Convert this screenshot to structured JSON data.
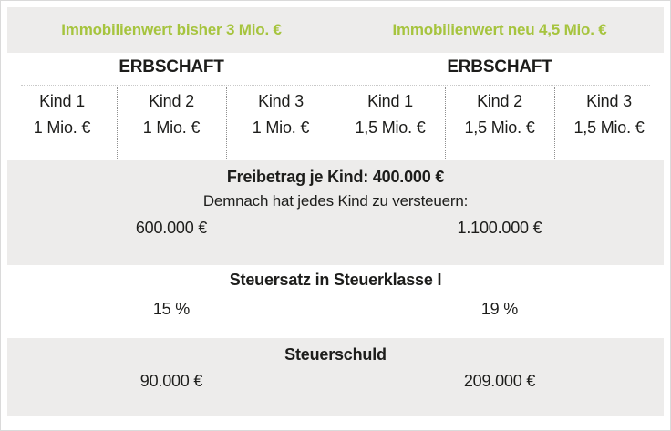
{
  "colors": {
    "accent_green": "#a6c43e",
    "band_gray": "#edeceb",
    "text_black": "#1d1d1b",
    "divider_gray": "#8f8f8f",
    "divider_light": "#c9c9c9",
    "frame_gray": "#dadada"
  },
  "header": {
    "left_title": "Immobilienwert bisher 3 Mio. €",
    "right_title": "Immobilienwert neu 4,5 Mio. €"
  },
  "erbschaft": {
    "left": {
      "title": "ERBSCHAFT",
      "children": [
        {
          "label": "Kind 1",
          "value": "1 Mio. €"
        },
        {
          "label": "Kind 2",
          "value": "1 Mio. €"
        },
        {
          "label": "Kind 3",
          "value": "1 Mio. €"
        }
      ]
    },
    "right": {
      "title": "ERBSCHAFT",
      "children": [
        {
          "label": "Kind 1",
          "value": "1,5 Mio. €"
        },
        {
          "label": "Kind 2",
          "value": "1,5 Mio. €"
        },
        {
          "label": "Kind 3",
          "value": "1,5 Mio. €"
        }
      ]
    }
  },
  "freibetrag": {
    "title": "Freibetrag je Kind: 400.000 €",
    "subtitle": "Demnach hat jedes Kind zu versteuern:",
    "left_value": "600.000 €",
    "right_value": "1.100.000 €"
  },
  "steuersatz": {
    "title": "Steuersatz in Steuerklasse I",
    "left_value": "15 %",
    "right_value": "19 %"
  },
  "steuerschuld": {
    "title": "Steuerschuld",
    "left_value": "90.000 €",
    "right_value": "209.000 €"
  },
  "chart_data": {
    "type": "table",
    "columns": [
      "Immobilienwert bisher 3 Mio. €",
      "Immobilienwert neu 4,5 Mio. €"
    ],
    "kinder": [
      "Kind 1",
      "Kind 2",
      "Kind 3"
    ],
    "erbschaft_je_kind_eur": [
      1000000,
      1500000
    ],
    "freibetrag_je_kind_eur": 400000,
    "zu_versteuern_je_kind_eur": [
      600000,
      1100000
    ],
    "steuersatz_steuerklasse_I_prozent": [
      15,
      19
    ],
    "steuerschuld_eur": [
      90000,
      209000
    ]
  }
}
